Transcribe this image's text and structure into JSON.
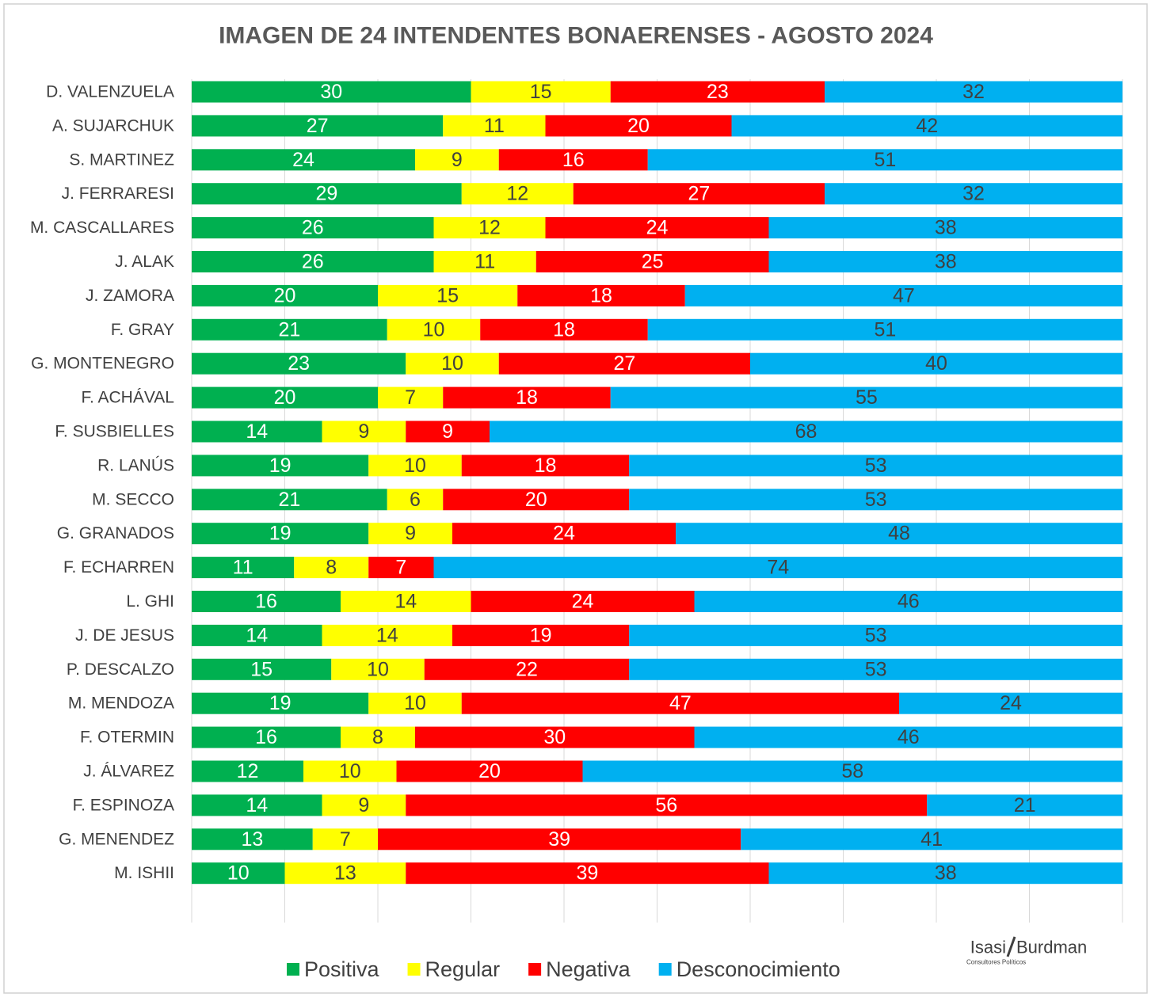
{
  "chart_data": {
    "type": "stacked-barh",
    "title": "IMAGEN DE 24 INTENDENTES BONAERENSES - AGOSTO 2024",
    "categories": [
      "D. VALENZUELA",
      "A. SUJARCHUK",
      "S. MARTINEZ",
      "J. FERRARESI",
      "M. CASCALLARES",
      "J. ALAK",
      "J. ZAMORA",
      "F. GRAY",
      "G. MONTENEGRO",
      "F. ACHÁVAL",
      "F. SUSBIELLES",
      "R. LANÚS",
      "M. SECCO",
      "G. GRANADOS",
      "F. ECHARREN",
      "L. GHI",
      "J. DE JESUS",
      "P. DESCALZO",
      "M. MENDOZA",
      "F. OTERMIN",
      "J. ÁLVAREZ",
      "F. ESPINOZA",
      "G. MENENDEZ",
      "M. ISHII"
    ],
    "series": [
      {
        "name": "Positiva",
        "color": "#00b050",
        "label_color": "#ffffff",
        "values": [
          30,
          27,
          24,
          29,
          26,
          26,
          20,
          21,
          23,
          20,
          14,
          19,
          21,
          19,
          11,
          16,
          14,
          15,
          19,
          16,
          12,
          14,
          13,
          10
        ]
      },
      {
        "name": "Regular",
        "color": "#ffff00",
        "label_color": "#404040",
        "values": [
          15,
          11,
          9,
          12,
          12,
          11,
          15,
          10,
          10,
          7,
          9,
          10,
          6,
          9,
          8,
          14,
          14,
          10,
          10,
          8,
          10,
          9,
          7,
          13
        ]
      },
      {
        "name": "Negativa",
        "color": "#ff0000",
        "label_color": "#ffffff",
        "values": [
          23,
          20,
          16,
          27,
          24,
          25,
          18,
          18,
          27,
          18,
          9,
          18,
          20,
          24,
          7,
          24,
          19,
          22,
          47,
          30,
          20,
          56,
          39,
          39
        ]
      },
      {
        "name": "Desconocimiento",
        "color": "#00b0f0",
        "label_color": "#404040",
        "values": [
          32,
          42,
          51,
          32,
          38,
          38,
          47,
          51,
          40,
          55,
          68,
          53,
          53,
          48,
          74,
          46,
          53,
          53,
          24,
          46,
          58,
          21,
          41,
          38
        ]
      }
    ],
    "xlim": [
      0,
      100
    ],
    "xticks": [
      0,
      10,
      20,
      30,
      40,
      50,
      60,
      70,
      80,
      90,
      100
    ],
    "grid": true,
    "legend": "bottom",
    "logo": {
      "left": "Isasi",
      "right": "Burdman",
      "sub": "Consultores Políticos"
    }
  }
}
